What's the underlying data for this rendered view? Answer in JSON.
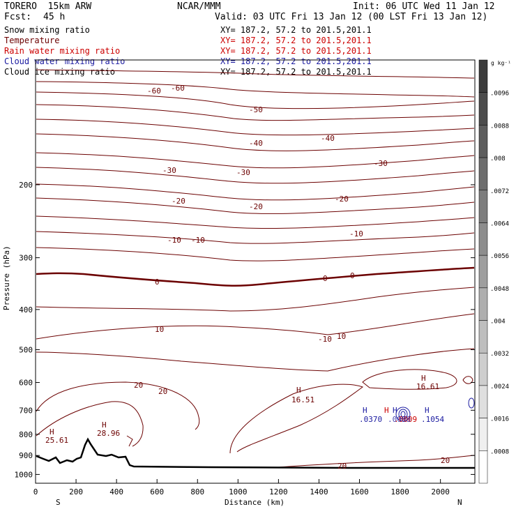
{
  "header": {
    "model": "TORERO  15km ARW",
    "center": "NCAR/MMM",
    "init": "Init: 06 UTC Wed 11 Jan 12",
    "fcst_label": "Fcst:",
    "fcst_value": "45 h",
    "valid": "Valid: 03 UTC Fri 13 Jan 12 (00 LST Fri 13 Jan 12)"
  },
  "legend": [
    {
      "name": "Snow mixing ratio",
      "color": "#000000",
      "xy": "XY= 187.2, 57.2 to 201.5,201.1"
    },
    {
      "name": "Temperature",
      "color": "#6b0000",
      "xy": "XY= 187.2, 57.2 to 201.5,201.1"
    },
    {
      "name": "Rain water mixing ratio",
      "color": "#cc0000",
      "xy": "XY= 187.2, 57.2 to 201.5,201.1"
    },
    {
      "name": "Cloud water mixing ratio",
      "color": "#1a1aa0",
      "xy": "XY= 187.2, 57.2 to 201.5,201.1"
    },
    {
      "name": "Cloud ice mixing ratio",
      "color": "#000000",
      "xy": "XY= 187.2, 57.2 to 201.5,201.1"
    }
  ],
  "chart_data": {
    "type": "contour cross-section",
    "xlabel": "Distance (km)",
    "ylabel": "Pressure (hPa)",
    "x_ticks": [
      "0",
      "200",
      "400",
      "600",
      "800",
      "1000",
      "1200",
      "1400",
      "1600",
      "1800",
      "2000"
    ],
    "y_ticks": [
      "200",
      "300",
      "400",
      "500",
      "600",
      "700",
      "800",
      "900",
      "1000"
    ],
    "xlim": [
      0,
      2170
    ],
    "ylim": [
      1050,
      100
    ],
    "endpoints": {
      "left": "S",
      "right": "N"
    },
    "colorbar": {
      "unit": "g kg⁻¹",
      "ticks": [
        ".0096",
        ".0088",
        ".008",
        ".0072",
        ".0064",
        ".0056",
        ".0048",
        ".004",
        ".0032",
        ".0024",
        ".0016",
        ".0008"
      ]
    },
    "temperature_contour_labels": [
      "-60",
      "-60",
      "-50",
      "-40",
      "-40",
      "-30",
      "-30",
      "-30",
      "-20",
      "-20",
      "-20",
      "-10",
      "-10",
      "-10",
      "0",
      "0",
      "0",
      "10",
      "-10",
      "10",
      "20",
      "20",
      "20",
      "20"
    ],
    "extrema_labels": {
      "temperature_high": [
        {
          "mark": "H",
          "value": "25.61"
        },
        {
          "mark": "H",
          "value": "28.96"
        },
        {
          "mark": "H",
          "value": "16.51"
        },
        {
          "mark": "H",
          "value": "16.61"
        }
      ],
      "cloud_water_high": [
        {
          "mark": "H",
          "value": ".0370"
        },
        {
          "mark": "H",
          "value": ".0088"
        },
        {
          "mark": "H",
          "value": ".1054"
        }
      ],
      "rain_high": [
        {
          "mark": "H",
          "value": ".0009"
        }
      ]
    }
  }
}
